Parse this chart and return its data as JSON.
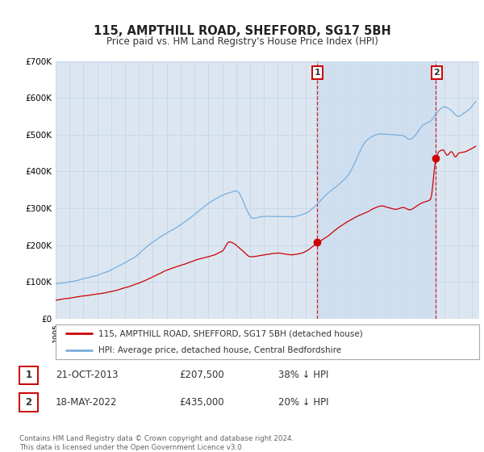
{
  "title": "115, AMPTHILL ROAD, SHEFFORD, SG17 5BH",
  "subtitle": "Price paid vs. HM Land Registry's House Price Index (HPI)",
  "ylim": [
    0,
    700000
  ],
  "yticks": [
    0,
    100000,
    200000,
    300000,
    400000,
    500000,
    600000,
    700000
  ],
  "ytick_labels": [
    "£0",
    "£100K",
    "£200K",
    "£300K",
    "£400K",
    "£500K",
    "£600K",
    "£700K"
  ],
  "background_color": "#ffffff",
  "plot_bg_color": "#dce6f1",
  "grid_color": "#c8d8e8",
  "hpi_line_color": "#7aaedb",
  "price_line_color": "#cc0000",
  "sale1_date": 2013.81,
  "sale1_price": 207500,
  "sale2_date": 2022.38,
  "sale2_price": 435000,
  "legend_label1": "115, AMPTHILL ROAD, SHEFFORD, SG17 5BH (detached house)",
  "legend_label2": "HPI: Average price, detached house, Central Bedfordshire",
  "table_row1": [
    "1",
    "21-OCT-2013",
    "£207,500",
    "38% ↓ HPI"
  ],
  "table_row2": [
    "2",
    "18-MAY-2022",
    "£435,000",
    "20% ↓ HPI"
  ],
  "footer": "Contains HM Land Registry data © Crown copyright and database right 2024.\nThis data is licensed under the Open Government Licence v3.0."
}
